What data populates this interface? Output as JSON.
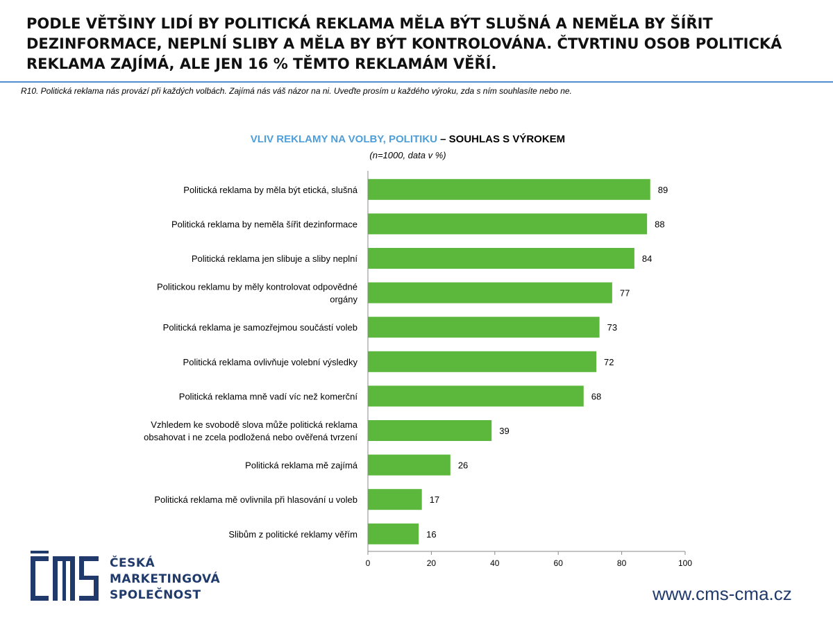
{
  "header": {
    "headline": "PODLE VĚTŠINY LIDÍ BY POLITICKÁ REKLAMA MĚLA BÝT SLUŠNÁ A NEMĚLA BY ŠÍŘIT DEZINFORMACE, NEPLNÍ SLIBY A MĚLA BY BÝT KONTROLOVÁNA. ČTVRTINU OSOB POLITICKÁ REKLAMA ZAJÍMÁ, ALE JEN 16 % TĚMTO REKLAMÁM VĚŘÍ.",
    "question": "R10. Politická reklama nás provází při každých volbách. Zajímá nás váš názor na ni. Uveďte prosím u každého výroku, zda s ním souhlasíte nebo ne."
  },
  "chart_data": {
    "type": "bar",
    "orientation": "horizontal",
    "title_part1": "VLIV REKLAMY NA VOLBY, POLITIKU",
    "title_part2": " – SOUHLAS S VÝROKEM",
    "subtitle": "(n=1000, data v %)",
    "categories": [
      [
        "Politická reklama by měla být etická, slušná"
      ],
      [
        "Politická reklama by neměla šířit dezinformace"
      ],
      [
        "Politická reklama jen slibuje a sliby neplní"
      ],
      [
        "Politickou reklamu by měly  kontrolovat odpovědné",
        "orgány"
      ],
      [
        "Politická reklama je samozřejmou součástí voleb"
      ],
      [
        "Politická reklama ovlivňuje volební výsledky"
      ],
      [
        "Politická reklama mně vadí víc než komerční"
      ],
      [
        "Vzhledem ke svobodě slova může politická reklama",
        "obsahovat i ne zcela podložená nebo ověřená tvrzení"
      ],
      [
        "Politická reklama mě zajímá"
      ],
      [
        "Politická reklama mě ovlivnila při hlasování u voleb"
      ],
      [
        "Slibům z politické reklamy věřím"
      ]
    ],
    "values": [
      89,
      88,
      84,
      77,
      73,
      72,
      68,
      39,
      26,
      17,
      16
    ],
    "xlim": [
      0,
      100
    ],
    "xticks": [
      0,
      20,
      40,
      60,
      80,
      100
    ],
    "grid": false,
    "bar_color": "#5cb83c",
    "title_color_part1": "#4e9ed9"
  },
  "branding": {
    "logo_line1": "ČESKÁ",
    "logo_line2": "MARKETINGOVÁ",
    "logo_line3": "SPOLEČNOST",
    "website": "www.cms-cma.cz",
    "brand_color": "#1f3a6b"
  }
}
